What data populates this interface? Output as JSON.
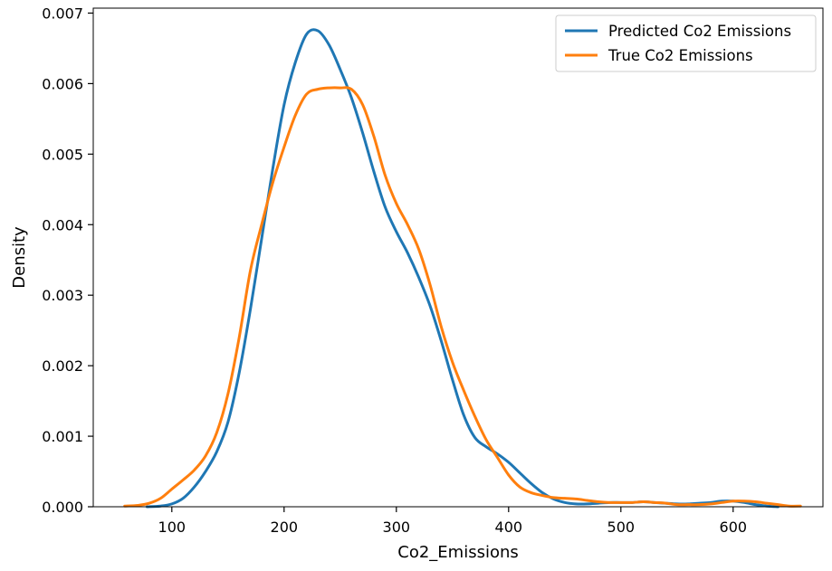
{
  "chart_data": {
    "type": "line",
    "xlabel": "Co2_Emissions",
    "ylabel": "Density",
    "xlim": [
      30,
      680
    ],
    "ylim": [
      0,
      0.00707
    ],
    "x_ticks": [
      100,
      200,
      300,
      400,
      500,
      600
    ],
    "y_ticks": [
      0.0,
      0.001,
      0.002,
      0.003,
      0.004,
      0.005,
      0.006,
      0.007
    ],
    "y_tick_labels": [
      "0.000",
      "0.001",
      "0.002",
      "0.003",
      "0.004",
      "0.005",
      "0.006",
      "0.007"
    ],
    "grid": false,
    "legend_position": "upper right",
    "series": [
      {
        "name": "Predicted Co2 Emissions",
        "color": "#1f77b4",
        "x": [
          78,
          90,
          100,
          110,
          120,
          130,
          140,
          150,
          160,
          170,
          180,
          190,
          200,
          210,
          220,
          230,
          240,
          250,
          260,
          270,
          280,
          290,
          300,
          310,
          320,
          330,
          340,
          350,
          360,
          370,
          380,
          390,
          400,
          410,
          420,
          430,
          440,
          450,
          460,
          470,
          480,
          490,
          500,
          510,
          520,
          530,
          540,
          550,
          560,
          570,
          580,
          590,
          600,
          610,
          620,
          630,
          640
        ],
        "y": [
          0,
          1e-05,
          4e-05,
          0.00012,
          0.00028,
          0.0005,
          0.00078,
          0.0012,
          0.0019,
          0.0028,
          0.0038,
          0.0048,
          0.0057,
          0.0063,
          0.0067,
          0.00675,
          0.00655,
          0.0062,
          0.0058,
          0.0053,
          0.00475,
          0.00425,
          0.0039,
          0.0036,
          0.00325,
          0.00285,
          0.00235,
          0.0018,
          0.0013,
          0.00098,
          0.00085,
          0.00075,
          0.00063,
          0.00048,
          0.00033,
          0.0002,
          0.00011,
          6e-05,
          4e-05,
          4e-05,
          5e-05,
          6e-05,
          6e-05,
          6e-05,
          7e-05,
          6e-05,
          5e-05,
          4e-05,
          4e-05,
          5e-05,
          6e-05,
          8e-05,
          8e-05,
          6e-05,
          3e-05,
          1e-05,
          0
        ]
      },
      {
        "name": "True Co2 Emissions",
        "color": "#ff7f0e",
        "x": [
          58,
          70,
          80,
          90,
          100,
          110,
          120,
          130,
          140,
          150,
          160,
          170,
          180,
          190,
          200,
          210,
          220,
          230,
          240,
          250,
          260,
          270,
          280,
          290,
          300,
          310,
          320,
          330,
          340,
          350,
          360,
          370,
          380,
          390,
          400,
          410,
          420,
          430,
          440,
          450,
          460,
          470,
          480,
          490,
          500,
          510,
          520,
          530,
          540,
          550,
          560,
          570,
          580,
          590,
          600,
          610,
          620,
          630,
          640,
          650,
          660
        ],
        "y": [
          1e-05,
          2e-05,
          5e-05,
          0.00012,
          0.00025,
          0.00038,
          0.00052,
          0.00072,
          0.00105,
          0.0016,
          0.0024,
          0.00335,
          0.004,
          0.0046,
          0.0051,
          0.00555,
          0.00585,
          0.00592,
          0.00594,
          0.00594,
          0.00592,
          0.0057,
          0.00525,
          0.0047,
          0.0043,
          0.004,
          0.00365,
          0.00315,
          0.00255,
          0.00205,
          0.00165,
          0.00128,
          0.00095,
          0.0007,
          0.00045,
          0.00028,
          0.0002,
          0.00016,
          0.00013,
          0.00012,
          0.00011,
          9e-05,
          7e-05,
          6e-05,
          6e-05,
          6e-05,
          7e-05,
          6e-05,
          5e-05,
          3e-05,
          3e-05,
          3e-05,
          4e-05,
          6e-05,
          8e-05,
          8e-05,
          7e-05,
          5e-05,
          3e-05,
          1e-05,
          1e-05
        ]
      }
    ]
  }
}
